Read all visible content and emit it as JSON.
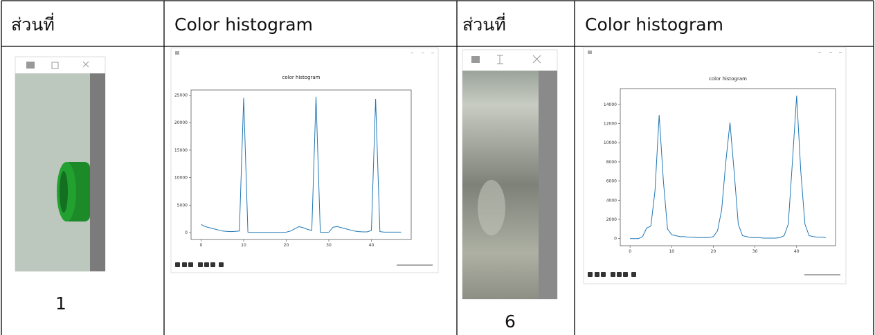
{
  "table": {
    "header": [
      "ส่วนที่",
      "Color histogram",
      "ส่วนที่",
      "Color histogram"
    ],
    "parts": [
      "1",
      "6"
    ]
  },
  "chart_data": [
    {
      "type": "line",
      "title": "color histogram",
      "color": "#1f77b4",
      "x": [
        0,
        1,
        2,
        3,
        4,
        5,
        6,
        7,
        8,
        9,
        10,
        11,
        12,
        13,
        14,
        15,
        16,
        17,
        18,
        19,
        20,
        21,
        22,
        23,
        24,
        25,
        26,
        27,
        28,
        29,
        30,
        31,
        32,
        33,
        34,
        35,
        36,
        37,
        38,
        39,
        40,
        41,
        42,
        43,
        44,
        45,
        46,
        47
      ],
      "values": [
        1500,
        1100,
        900,
        700,
        500,
        300,
        250,
        200,
        250,
        300,
        24500,
        100,
        50,
        50,
        50,
        50,
        50,
        50,
        50,
        50,
        100,
        300,
        700,
        1100,
        900,
        600,
        400,
        24700,
        100,
        50,
        100,
        1000,
        1100,
        900,
        700,
        500,
        300,
        200,
        150,
        150,
        400,
        24300,
        200,
        100,
        100,
        100,
        100,
        100
      ],
      "xlim": [
        -2.35,
        49.35
      ],
      "ylim": [
        -1235,
        25935
      ],
      "xticks": [
        0,
        10,
        20,
        30,
        40
      ],
      "yticks": [
        0,
        5000,
        10000,
        15000,
        20000,
        25000
      ]
    },
    {
      "type": "line",
      "title": "color histogram",
      "color": "#1f77b4",
      "x": [
        0,
        1,
        2,
        3,
        4,
        5,
        6,
        7,
        8,
        9,
        10,
        11,
        12,
        13,
        14,
        15,
        16,
        17,
        18,
        19,
        20,
        21,
        22,
        23,
        24,
        25,
        26,
        27,
        28,
        29,
        30,
        31,
        32,
        33,
        34,
        35,
        36,
        37,
        38,
        39,
        40,
        41,
        42,
        43,
        44,
        45,
        46,
        47
      ],
      "values": [
        0,
        0,
        0,
        200,
        1100,
        1300,
        5000,
        12900,
        6000,
        1000,
        400,
        300,
        200,
        200,
        150,
        150,
        100,
        100,
        100,
        100,
        200,
        800,
        3000,
        8000,
        12100,
        7000,
        1500,
        300,
        200,
        100,
        100,
        100,
        50,
        50,
        50,
        50,
        100,
        300,
        1500,
        8000,
        14900,
        7000,
        1500,
        300,
        200,
        150,
        150,
        100
      ],
      "xlim": [
        -2.35,
        49.35
      ],
      "ylim": [
        -745,
        15645
      ],
      "xticks": [
        0,
        10,
        20,
        30,
        40
      ],
      "yticks": [
        0,
        2000,
        4000,
        6000,
        8000,
        10000,
        12000,
        14000
      ]
    }
  ]
}
